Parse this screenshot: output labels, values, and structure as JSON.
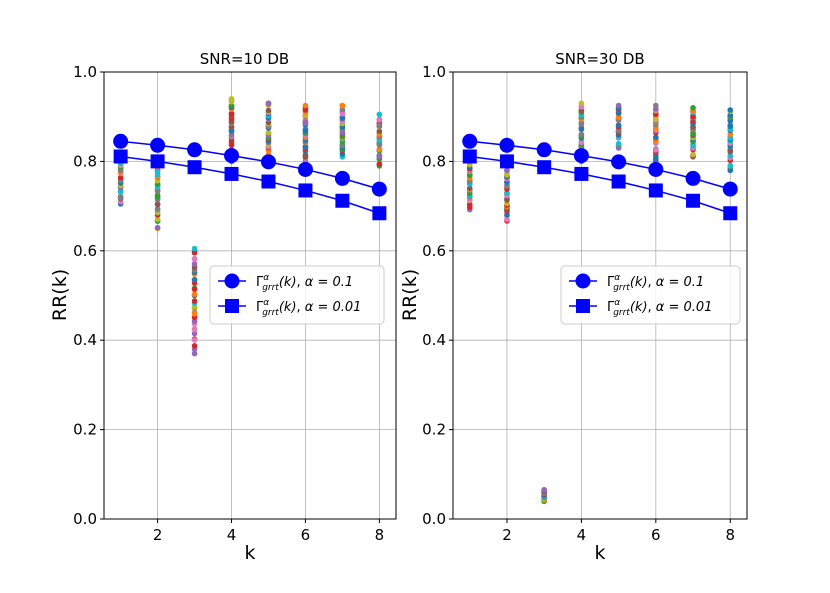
{
  "chart_data": [
    {
      "type": "scatter",
      "title": "SNR=10 DB",
      "xlabel": "k",
      "ylabel": "RR(k)",
      "xlim": [
        0.55,
        8.45
      ],
      "ylim": [
        0.0,
        1.0
      ],
      "xticks": [
        "2",
        "4",
        "6",
        "8"
      ],
      "yticks": [
        "0.0",
        "0.2",
        "0.4",
        "0.6",
        "0.8",
        "1.0"
      ],
      "grid": true,
      "legend_position": "center-right",
      "scatter_ranges": [
        {
          "k": 1,
          "min": 0.705,
          "max": 0.805
        },
        {
          "k": 2,
          "min": 0.65,
          "max": 0.795
        },
        {
          "k": 3,
          "min": 0.37,
          "max": 0.605
        },
        {
          "k": 4,
          "min": 0.8,
          "max": 0.94
        },
        {
          "k": 5,
          "min": 0.815,
          "max": 0.93
        },
        {
          "k": 6,
          "min": 0.8,
          "max": 0.925
        },
        {
          "k": 7,
          "min": 0.81,
          "max": 0.925
        },
        {
          "k": 8,
          "min": 0.79,
          "max": 0.905
        }
      ],
      "series": [
        {
          "name": "Γ^α_grrt(k), α = 0.1",
          "marker": "circle",
          "color": "#0000ff",
          "x": [
            1,
            2,
            3,
            4,
            5,
            6,
            7,
            8
          ],
          "values": [
            0.845,
            0.836,
            0.826,
            0.813,
            0.799,
            0.782,
            0.762,
            0.738
          ]
        },
        {
          "name": "Γ^α_grrt(k), α = 0.01",
          "marker": "square",
          "color": "#0000ff",
          "x": [
            1,
            2,
            3,
            4,
            5,
            6,
            7,
            8
          ],
          "values": [
            0.811,
            0.8,
            0.787,
            0.772,
            0.755,
            0.735,
            0.712,
            0.684
          ]
        }
      ]
    },
    {
      "type": "scatter",
      "title": "SNR=30 DB",
      "xlabel": "k",
      "ylabel": "RR(k)",
      "xlim": [
        0.55,
        8.45
      ],
      "ylim": [
        0.0,
        1.0
      ],
      "xticks": [
        "2",
        "4",
        "6",
        "8"
      ],
      "yticks": [
        "0.0",
        "0.2",
        "0.4",
        "0.6",
        "0.8",
        "1.0"
      ],
      "grid": true,
      "legend_position": "center-right",
      "scatter_ranges": [
        {
          "k": 1,
          "min": 0.692,
          "max": 0.8
        },
        {
          "k": 2,
          "min": 0.667,
          "max": 0.78
        },
        {
          "k": 3,
          "min": 0.04,
          "max": 0.065
        },
        {
          "k": 4,
          "min": 0.8,
          "max": 0.93
        },
        {
          "k": 5,
          "min": 0.83,
          "max": 0.925
        },
        {
          "k": 6,
          "min": 0.8,
          "max": 0.925
        },
        {
          "k": 7,
          "min": 0.81,
          "max": 0.92
        },
        {
          "k": 8,
          "min": 0.78,
          "max": 0.915
        }
      ],
      "series": [
        {
          "name": "Γ^α_grrt(k), α = 0.1",
          "marker": "circle",
          "color": "#0000ff",
          "x": [
            1,
            2,
            3,
            4,
            5,
            6,
            7,
            8
          ],
          "values": [
            0.845,
            0.836,
            0.826,
            0.813,
            0.799,
            0.782,
            0.762,
            0.738
          ]
        },
        {
          "name": "Γ^α_grrt(k), α = 0.01",
          "marker": "square",
          "color": "#0000ff",
          "x": [
            1,
            2,
            3,
            4,
            5,
            6,
            7,
            8
          ],
          "values": [
            0.811,
            0.8,
            0.787,
            0.772,
            0.755,
            0.735,
            0.712,
            0.684
          ]
        }
      ]
    }
  ],
  "legend_labels": {
    "alpha1": "α = 0.1",
    "alpha2": "α = 0.01"
  },
  "palette": [
    "#1f77b4",
    "#ff7f0e",
    "#2ca02c",
    "#d62728",
    "#9467bd",
    "#8c564b",
    "#e377c2",
    "#7f7f7f",
    "#bcbd22",
    "#17becf"
  ]
}
